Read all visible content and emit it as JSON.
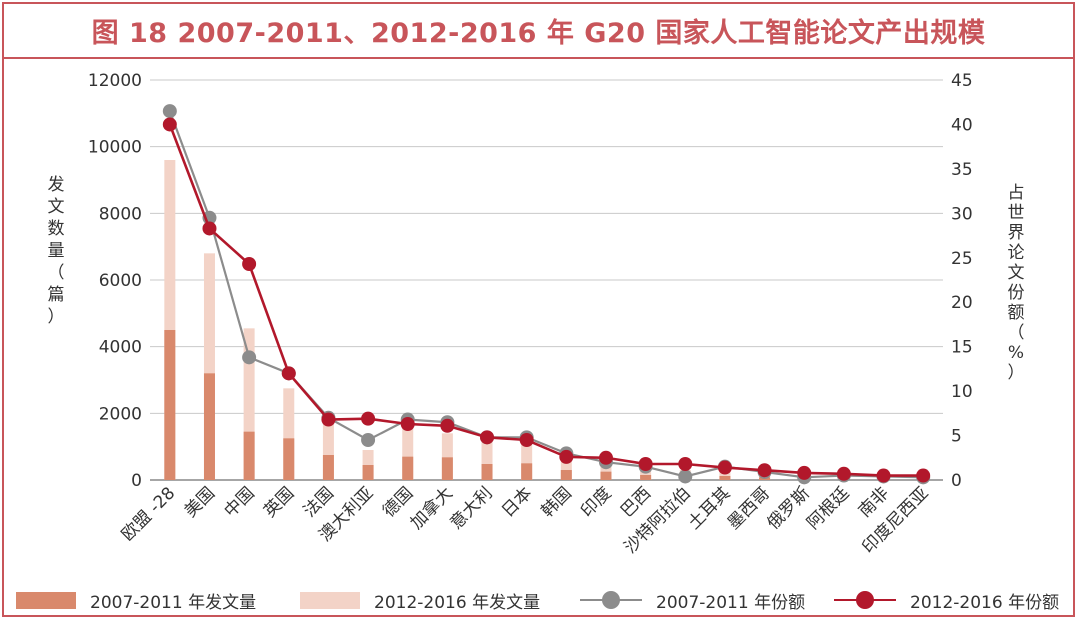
{
  "chart_data": {
    "type": "bar+line",
    "title": "图 18  2007-2011、2012-2016 年 G20 国家人工智能论文产出规模",
    "categories": [
      "欧盟 -28",
      "美国",
      "中国",
      "英国",
      "法国",
      "澳大利亚",
      "德国",
      "加拿大",
      "意大利",
      "日本",
      "韩国",
      "印度",
      "巴西",
      "沙特阿拉伯",
      "土耳其",
      "墨西哥",
      "俄罗斯",
      "阿根廷",
      "南非",
      "印度尼西亚"
    ],
    "ylabel_left": "发文数量（篇）",
    "ylabel_right": "占世界论文份额（%）",
    "ylim_left": [
      0,
      12000
    ],
    "ylim_right": [
      0,
      45
    ],
    "yticks_left": [
      0,
      2000,
      4000,
      6000,
      8000,
      10000,
      12000
    ],
    "yticks_right": [
      0,
      5,
      10,
      15,
      20,
      25,
      30,
      35,
      40,
      45
    ],
    "grid": true,
    "legend_position": "bottom",
    "series": [
      {
        "name": "2007-2011 年发文量",
        "kind": "bar",
        "color": "#d9896c",
        "values": [
          4500,
          3200,
          1450,
          1250,
          750,
          450,
          700,
          680,
          480,
          500,
          300,
          250,
          150,
          60,
          120,
          80,
          50,
          40,
          40,
          30
        ]
      },
      {
        "name": "2012-2016 年发文量",
        "kind": "bar",
        "color": "#f3d3c7",
        "values": [
          9600,
          6800,
          4550,
          2750,
          1900,
          900,
          1600,
          1400,
          1200,
          1200,
          750,
          600,
          450,
          300,
          400,
          250,
          200,
          150,
          120,
          120
        ]
      },
      {
        "name": "2007-2011 年份额",
        "kind": "line",
        "axis": "right",
        "color": "#8c8c8c",
        "values": [
          41.5,
          29.5,
          13.8,
          12.0,
          7.0,
          4.5,
          6.8,
          6.5,
          4.8,
          4.8,
          3.0,
          2.0,
          1.5,
          0.4,
          1.5,
          0.9,
          0.3,
          0.5,
          0.4,
          0.3
        ]
      },
      {
        "name": "2012-2016 年份额",
        "kind": "line",
        "axis": "right",
        "color": "#b2182b",
        "values": [
          40.0,
          28.3,
          24.3,
          12.0,
          6.8,
          6.9,
          6.3,
          6.1,
          4.8,
          4.5,
          2.6,
          2.5,
          1.8,
          1.8,
          1.4,
          1.1,
          0.8,
          0.7,
          0.5,
          0.5
        ]
      }
    ]
  }
}
